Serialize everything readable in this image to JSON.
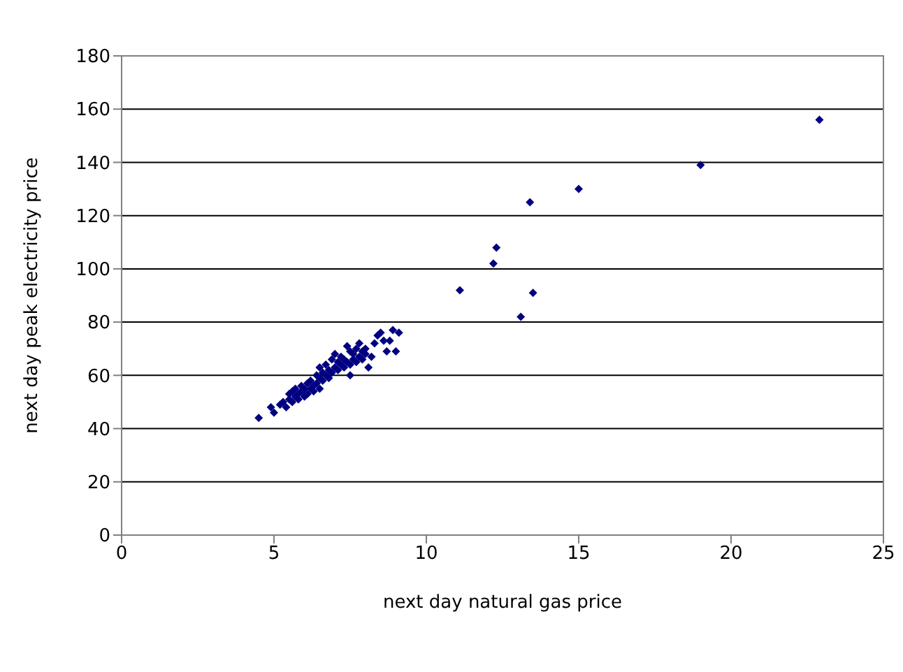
{
  "chart_data": {
    "type": "scatter",
    "xlabel": "next day natural gas price",
    "ylabel": "next day peak electricity price",
    "xlim": [
      0,
      25
    ],
    "xticks": [
      0,
      5,
      10,
      15,
      20,
      25
    ],
    "ylim": [
      0,
      180
    ],
    "yticks": [
      0,
      20,
      40,
      60,
      80,
      100,
      120,
      140,
      160,
      180
    ],
    "grid": "y",
    "marker": "diamond",
    "legend": false,
    "series": [
      {
        "color": "#000080",
        "x": [
          4.5,
          4.9,
          5.0,
          5.2,
          5.3,
          5.4,
          5.5,
          5.5,
          5.6,
          5.6,
          5.7,
          5.7,
          5.8,
          5.8,
          5.9,
          5.9,
          6.0,
          6.0,
          6.1,
          6.1,
          6.2,
          6.2,
          6.3,
          6.3,
          6.4,
          6.4,
          6.5,
          6.5,
          6.5,
          6.6,
          6.6,
          6.7,
          6.7,
          6.8,
          6.8,
          6.9,
          6.9,
          7.0,
          7.0,
          7.1,
          7.1,
          7.2,
          7.2,
          7.3,
          7.3,
          7.4,
          7.4,
          7.5,
          7.5,
          7.5,
          7.6,
          7.6,
          7.7,
          7.7,
          7.8,
          7.8,
          7.9,
          7.9,
          8.0,
          8.0,
          8.1,
          8.2,
          8.3,
          8.4,
          8.5,
          8.6,
          8.7,
          8.8,
          8.9,
          9.0,
          9.1,
          11.1,
          12.2,
          12.3,
          13.1,
          13.4,
          13.5,
          15.0,
          19.0,
          22.9
        ],
        "values": [
          44,
          48,
          46,
          49,
          50,
          48,
          51,
          53,
          50,
          54,
          52,
          55,
          51,
          53,
          54,
          56,
          52,
          55,
          53,
          57,
          55,
          58,
          54,
          56,
          57,
          60,
          55,
          59,
          63,
          58,
          61,
          60,
          64,
          59,
          62,
          61,
          66,
          63,
          68,
          62,
          65,
          64,
          67,
          63,
          66,
          65,
          71,
          60,
          64,
          69,
          66,
          68,
          65,
          70,
          67,
          72,
          66,
          69,
          68,
          70,
          63,
          67,
          72,
          75,
          76,
          73,
          69,
          73,
          77,
          69,
          76,
          92,
          102,
          108,
          82,
          125,
          91,
          130,
          139,
          156
        ]
      }
    ]
  }
}
